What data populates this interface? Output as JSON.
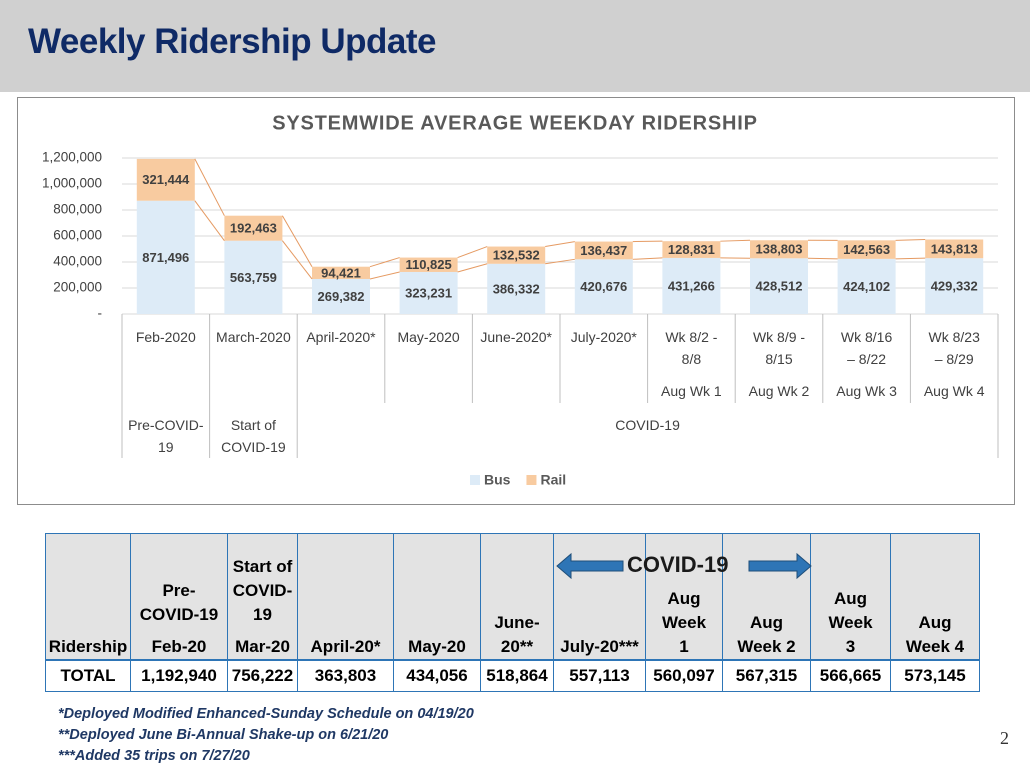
{
  "header": {
    "title": "Weekly Ridership Update"
  },
  "chart_data": {
    "type": "stacked_bar",
    "title": "SYSTEMWIDE AVERAGE WEEKDAY RIDERSHIP",
    "categories": [
      "Feb-2020",
      "March-2020",
      "April-2020*",
      "May-2020",
      "June-2020*",
      "July-2020*",
      "Wk 8/2 - 8/8",
      "Wk 8/9 - 8/15",
      "Wk 8/16 – 8/22",
      "Wk 8/23 – 8/29"
    ],
    "category_sublabels": [
      null,
      null,
      null,
      null,
      null,
      null,
      "Aug Wk 1",
      "Aug Wk 2",
      "Aug Wk 3",
      "Aug Wk 4"
    ],
    "category_groups": [
      "Pre-COVID-19",
      "Start of COVID-19",
      "COVID-19",
      null,
      null,
      null,
      null,
      null,
      null,
      null
    ],
    "series": [
      {
        "name": "Bus",
        "color": "#ddebf7",
        "values": [
          871496,
          563759,
          269382,
          323231,
          386332,
          420676,
          431266,
          428512,
          424102,
          429332
        ],
        "value_labels": [
          "871,496",
          "563,759",
          "269,382",
          "323,231",
          "386,332",
          "420,676",
          "431,266",
          "428,512",
          "424,102",
          "429,332"
        ]
      },
      {
        "name": "Rail",
        "color": "#f8cba0",
        "values": [
          321444,
          192463,
          94421,
          110825,
          132532,
          136437,
          128831,
          138803,
          142563,
          143813
        ],
        "value_labels": [
          "321,444",
          "192,463",
          "94,421",
          "110,825",
          "132,532",
          "136,437",
          "128,831",
          "138,803",
          "142,563",
          "143,813"
        ]
      }
    ],
    "connector_color": "#e59a62",
    "ylim": [
      0,
      1200000
    ],
    "yticks": [
      {
        "value": 0,
        "label": "-"
      },
      {
        "value": 200000,
        "label": "200,000"
      },
      {
        "value": 400000,
        "label": "400,000"
      },
      {
        "value": 600000,
        "label": "600,000"
      },
      {
        "value": 800000,
        "label": "800,000"
      },
      {
        "value": 1000000,
        "label": "1,000,000"
      },
      {
        "value": 1200000,
        "label": "1,200,000"
      }
    ],
    "grid": true,
    "legend": "bottom"
  },
  "table": {
    "group_labels": [
      "Pre-COVID-19",
      "Start of COVID-19"
    ],
    "covid_label": "COVID-19",
    "columns": [
      "Ridership",
      "Feb-20",
      "Mar-20",
      "April-20*",
      "May-20",
      "June-20**",
      "July-20***",
      "Aug Week 1",
      "Aug Week 2",
      "Aug Week 3",
      "Aug Week 4"
    ],
    "rows": [
      [
        "TOTAL",
        "1,192,940",
        "756,222",
        "363,803",
        "434,056",
        "518,864",
        "557,113",
        "560,097",
        "567,315",
        "566,665",
        "573,145"
      ]
    ]
  },
  "footnotes": [
    "*Deployed Modified Enhanced-Sunday Schedule on 04/19/20",
    "**Deployed June Bi-Annual Shake-up on 6/21/20",
    "***Added 35 trips on 7/27/20"
  ],
  "page_number": "2"
}
